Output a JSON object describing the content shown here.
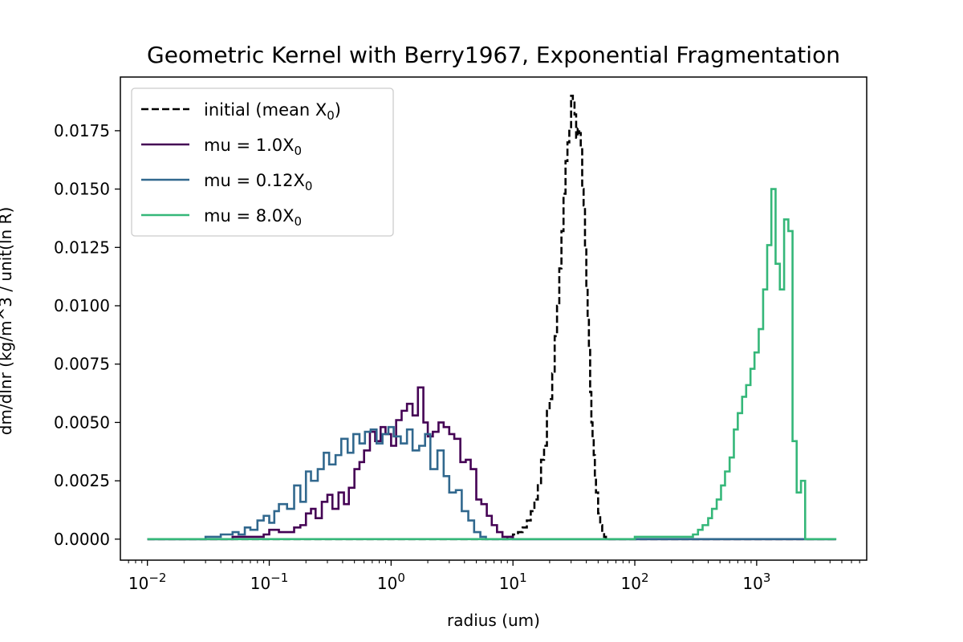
{
  "chart_data": {
    "type": "line",
    "title": "Geometric Kernel with Berry1967, Exponential Fragmentation",
    "xlabel": "radius (um)",
    "ylabel": "dm/dlnr (kg/m^3 / unit(ln R)",
    "xscale": "log",
    "xlim": [
      0.006,
      8000
    ],
    "ylim": [
      -0.0009,
      0.0198
    ],
    "xticks": [
      {
        "value": 0.01,
        "base": "10",
        "exp": "−2"
      },
      {
        "value": 0.1,
        "base": "10",
        "exp": "−1"
      },
      {
        "value": 1,
        "base": "10",
        "exp": "0"
      },
      {
        "value": 10,
        "base": "10",
        "exp": "1"
      },
      {
        "value": 100,
        "base": "10",
        "exp": "2"
      },
      {
        "value": 1000,
        "base": "10",
        "exp": "3"
      }
    ],
    "yticks": [
      {
        "value": 0.0,
        "label": "0.0000"
      },
      {
        "value": 0.0025,
        "label": "0.0025"
      },
      {
        "value": 0.005,
        "label": "0.0050"
      },
      {
        "value": 0.0075,
        "label": "0.0075"
      },
      {
        "value": 0.01,
        "label": "0.0100"
      },
      {
        "value": 0.0125,
        "label": "0.0125"
      },
      {
        "value": 0.015,
        "label": "0.0150"
      },
      {
        "value": 0.0175,
        "label": "0.0175"
      }
    ],
    "legend_position": "top-left",
    "series": [
      {
        "name": "initial (mean X",
        "name_sub": "0",
        "name_suffix": ")",
        "color": "#000000",
        "style": "dashed",
        "x": [
          0.01,
          8,
          9,
          10,
          11,
          12,
          13,
          14,
          15,
          16,
          17,
          18,
          19,
          20,
          21,
          22,
          23,
          24,
          25,
          26,
          27,
          28,
          29,
          30,
          31,
          32,
          33,
          34,
          35,
          36,
          37,
          38,
          39,
          40,
          41,
          42,
          43,
          44,
          45,
          46,
          47,
          48,
          50,
          52,
          54,
          56,
          58,
          60,
          4500
        ],
        "y": [
          0.0,
          0.0,
          0.0001,
          0.0002,
          0.0003,
          0.0005,
          0.0008,
          0.0012,
          0.0017,
          0.0024,
          0.0034,
          0.004,
          0.0055,
          0.006,
          0.0071,
          0.0087,
          0.01,
          0.0116,
          0.0132,
          0.0148,
          0.0162,
          0.017,
          0.0175,
          0.019,
          0.0188,
          0.0182,
          0.0172,
          0.0176,
          0.0174,
          0.0168,
          0.015,
          0.0143,
          0.0125,
          0.0108,
          0.0095,
          0.0082,
          0.0063,
          0.005,
          0.0043,
          0.0036,
          0.0026,
          0.002,
          0.0011,
          0.0006,
          0.0003,
          0.0001,
          0.0,
          0.0,
          0.0
        ]
      },
      {
        "name": "mu = 1.0X",
        "name_sub": "0",
        "name_suffix": "",
        "color": "#440154",
        "style": "solid",
        "x": [
          0.01,
          0.05,
          0.06,
          0.07,
          0.08,
          0.09,
          0.1,
          0.12,
          0.14,
          0.16,
          0.18,
          0.2,
          0.22,
          0.24,
          0.27,
          0.3,
          0.33,
          0.37,
          0.41,
          0.45,
          0.5,
          0.55,
          0.6,
          0.67,
          0.74,
          0.82,
          0.9,
          1.0,
          1.1,
          1.22,
          1.35,
          1.5,
          1.66,
          1.84,
          2.0,
          2.2,
          2.45,
          2.7,
          3.0,
          3.3,
          3.7,
          4.1,
          4.5,
          5.0,
          5.5,
          6.1,
          6.7,
          7.4,
          8.2,
          9.0,
          10.0,
          4500
        ],
        "y": [
          0.0,
          0.0001,
          0.0001,
          0.0001,
          0.0001,
          0.0002,
          0.0004,
          0.0003,
          0.0003,
          0.0005,
          0.0006,
          0.0011,
          0.0013,
          0.0009,
          0.0016,
          0.0019,
          0.0013,
          0.002,
          0.0015,
          0.0022,
          0.003,
          0.0033,
          0.0038,
          0.0046,
          0.0042,
          0.0048,
          0.0045,
          0.004,
          0.0051,
          0.0055,
          0.0058,
          0.0053,
          0.0065,
          0.005,
          0.0044,
          0.0046,
          0.005,
          0.0048,
          0.0045,
          0.0043,
          0.0033,
          0.0034,
          0.003,
          0.0017,
          0.0015,
          0.001,
          0.0006,
          0.0003,
          0.0001,
          0.0001,
          0.0,
          0.0
        ]
      },
      {
        "name": "mu = 0.12X",
        "name_sub": "0",
        "name_suffix": "",
        "color": "#31688e",
        "style": "solid",
        "x": [
          0.01,
          0.03,
          0.035,
          0.04,
          0.045,
          0.05,
          0.056,
          0.063,
          0.07,
          0.08,
          0.09,
          0.1,
          0.11,
          0.12,
          0.14,
          0.16,
          0.18,
          0.2,
          0.22,
          0.25,
          0.28,
          0.31,
          0.35,
          0.39,
          0.44,
          0.49,
          0.55,
          0.61,
          0.68,
          0.76,
          0.85,
          0.95,
          1.05,
          1.2,
          1.35,
          1.5,
          1.7,
          1.9,
          2.1,
          2.4,
          2.7,
          3.0,
          3.4,
          3.8,
          4.3,
          4.8,
          5.4,
          6.0,
          4500
        ],
        "y": [
          0.0,
          0.0001,
          0.0001,
          0.0002,
          0.0002,
          0.0003,
          0.0002,
          0.0005,
          0.0004,
          0.0008,
          0.001,
          0.0007,
          0.0012,
          0.0015,
          0.0013,
          0.0023,
          0.0016,
          0.0029,
          0.0025,
          0.003,
          0.0037,
          0.0032,
          0.0036,
          0.0043,
          0.0037,
          0.0045,
          0.0041,
          0.0046,
          0.0047,
          0.0041,
          0.0045,
          0.0048,
          0.0044,
          0.0041,
          0.0047,
          0.0038,
          0.004,
          0.0045,
          0.003,
          0.0038,
          0.0027,
          0.002,
          0.0021,
          0.0012,
          0.0008,
          0.0003,
          0.0001,
          0.0,
          0.0
        ]
      },
      {
        "name": "mu = 8.0X",
        "name_sub": "0",
        "name_suffix": "",
        "color": "#35b779",
        "style": "solid",
        "x": [
          0.01,
          100,
          200,
          300,
          330,
          360,
          400,
          430,
          470,
          510,
          550,
          600,
          650,
          700,
          760,
          820,
          890,
          960,
          1040,
          1130,
          1220,
          1320,
          1430,
          1550,
          1680,
          1820,
          1970,
          2130,
          2310,
          2500,
          2700,
          4500
        ],
        "y": [
          0.0,
          0.0001,
          0.0001,
          0.0002,
          0.0004,
          0.0006,
          0.0009,
          0.0013,
          0.0017,
          0.0023,
          0.0029,
          0.0035,
          0.0047,
          0.0054,
          0.0061,
          0.0066,
          0.0073,
          0.008,
          0.009,
          0.0107,
          0.0126,
          0.015,
          0.0118,
          0.0107,
          0.0137,
          0.0132,
          0.0042,
          0.002,
          0.0025,
          0.0,
          0.0,
          0.0
        ]
      }
    ]
  }
}
